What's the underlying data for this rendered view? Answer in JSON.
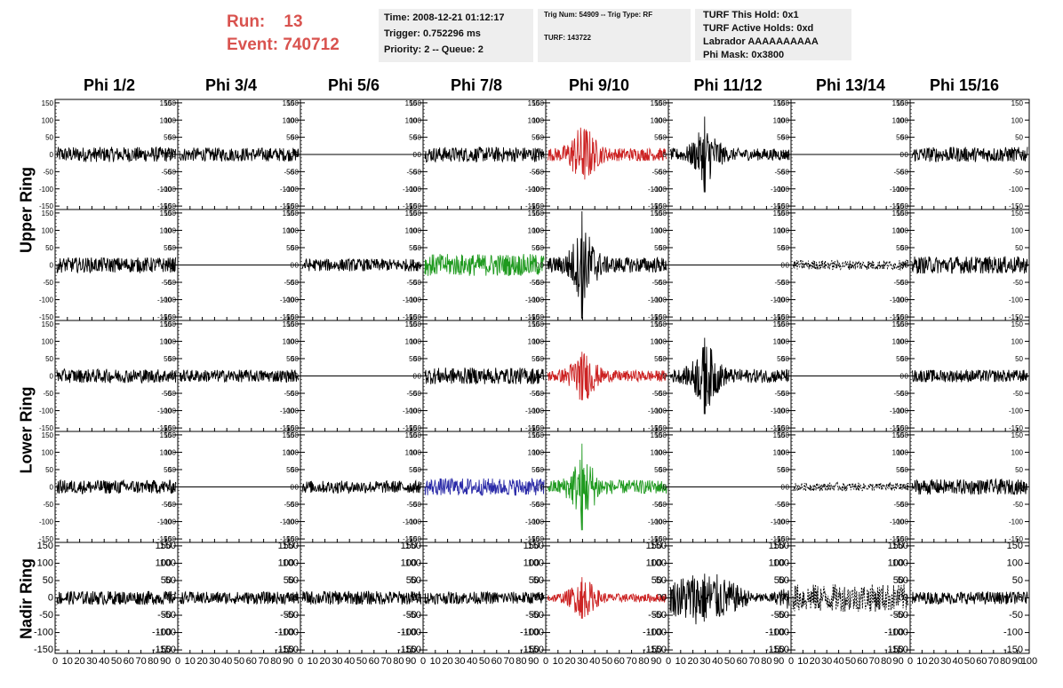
{
  "header": {
    "run_label": "Run:",
    "run_value": "13",
    "event_label": "Event:",
    "event_value": "740712",
    "run_color": "#d9534f"
  },
  "info_box_1": {
    "time": "Time: 2008-12-21 01:12:17",
    "trigger": "Trigger: 0.752296 ms",
    "priority": "Priority: 2 -- Queue: 2"
  },
  "info_box_2": {
    "trig": "Trig Num: 54909 -- Trig Type: RF",
    "turf": "TURF: 143722"
  },
  "info_box_3": {
    "this_hold": "TURF This Hold: 0x1",
    "active_holds": "TURF Active Holds: 0xd",
    "labrador": "Labrador AAAAAAAAAA",
    "phi_mask": "Phi Mask: 0x3800"
  },
  "chart_data": {
    "type": "line",
    "columns": [
      "Phi 1/2",
      "Phi 3/4",
      "Phi 5/6",
      "Phi 7/8",
      "Phi 9/10",
      "Phi 11/12",
      "Phi 13/14",
      "Phi 15/16"
    ],
    "ring_labels": [
      {
        "label": "Upper Ring",
        "rows": [
          0,
          1
        ]
      },
      {
        "label": "Lower Ring",
        "rows": [
          2,
          3
        ]
      },
      {
        "label": "Nadir Ring",
        "rows": [
          4
        ]
      }
    ],
    "ylim": [
      -160,
      160
    ],
    "yticks": [
      -150,
      -100,
      -50,
      0,
      50,
      100,
      150
    ],
    "xlim": [
      0,
      100
    ],
    "xticks": [
      0,
      10,
      20,
      30,
      40,
      50,
      60,
      70,
      80,
      90,
      100
    ],
    "xtick_labels": [
      "0",
      "10",
      "20",
      "30",
      "40",
      "50",
      "60",
      "70",
      "80",
      "90",
      "100"
    ],
    "trace_colors": {
      "k": "#000000",
      "r": "#cc2222",
      "g": "#1f9a1f",
      "b": "#2a2aa8"
    },
    "panels": [
      [
        {
          "c": "k",
          "a": 22
        },
        {
          "c": "k",
          "a": 20
        },
        {
          "c": "k",
          "a": 0
        },
        {
          "c": "k",
          "a": 22
        },
        {
          "c": "r",
          "a": 38,
          "burst": true
        },
        {
          "c": "k",
          "a": 35,
          "burst": true,
          "peak": 110
        },
        {
          "c": "k",
          "a": 0
        },
        {
          "c": "k",
          "a": 22
        }
      ],
      [
        {
          "c": "k",
          "a": 22
        },
        {
          "c": "k",
          "a": 0
        },
        {
          "c": "k",
          "a": 18
        },
        {
          "c": "g",
          "a": 32
        },
        {
          "c": "k",
          "a": 45,
          "burst": true,
          "peak": 155
        },
        {
          "c": "k",
          "a": 0
        },
        {
          "c": "k",
          "a": 14,
          "dashed": true
        },
        {
          "c": "k",
          "a": 25
        }
      ],
      [
        {
          "c": "k",
          "a": 20
        },
        {
          "c": "k",
          "a": 18
        },
        {
          "c": "k",
          "a": 0
        },
        {
          "c": "k",
          "a": 24
        },
        {
          "c": "r",
          "a": 32,
          "burst": true,
          "peak": 70
        },
        {
          "c": "k",
          "a": 40,
          "burst": true,
          "peak": 110
        },
        {
          "c": "k",
          "a": 0
        },
        {
          "c": "k",
          "a": 18
        }
      ],
      [
        {
          "c": "k",
          "a": 20
        },
        {
          "c": "k",
          "a": 0
        },
        {
          "c": "k",
          "a": 18
        },
        {
          "c": "b",
          "a": 25
        },
        {
          "c": "g",
          "a": 40,
          "burst": true,
          "peak": 125
        },
        {
          "c": "k",
          "a": 0
        },
        {
          "c": "k",
          "a": 12,
          "dashed": true
        },
        {
          "c": "k",
          "a": 22
        }
      ],
      [
        {
          "c": "k",
          "a": 20
        },
        {
          "c": "k",
          "a": 18
        },
        {
          "c": "k",
          "a": 20
        },
        {
          "c": "k",
          "a": 18
        },
        {
          "c": "r",
          "a": 25,
          "burst": true,
          "peak": 60
        },
        {
          "c": "k",
          "a": 65,
          "wide": true
        },
        {
          "c": "k",
          "a": 40,
          "dashed": true
        },
        {
          "c": "k",
          "a": 18
        }
      ]
    ]
  }
}
